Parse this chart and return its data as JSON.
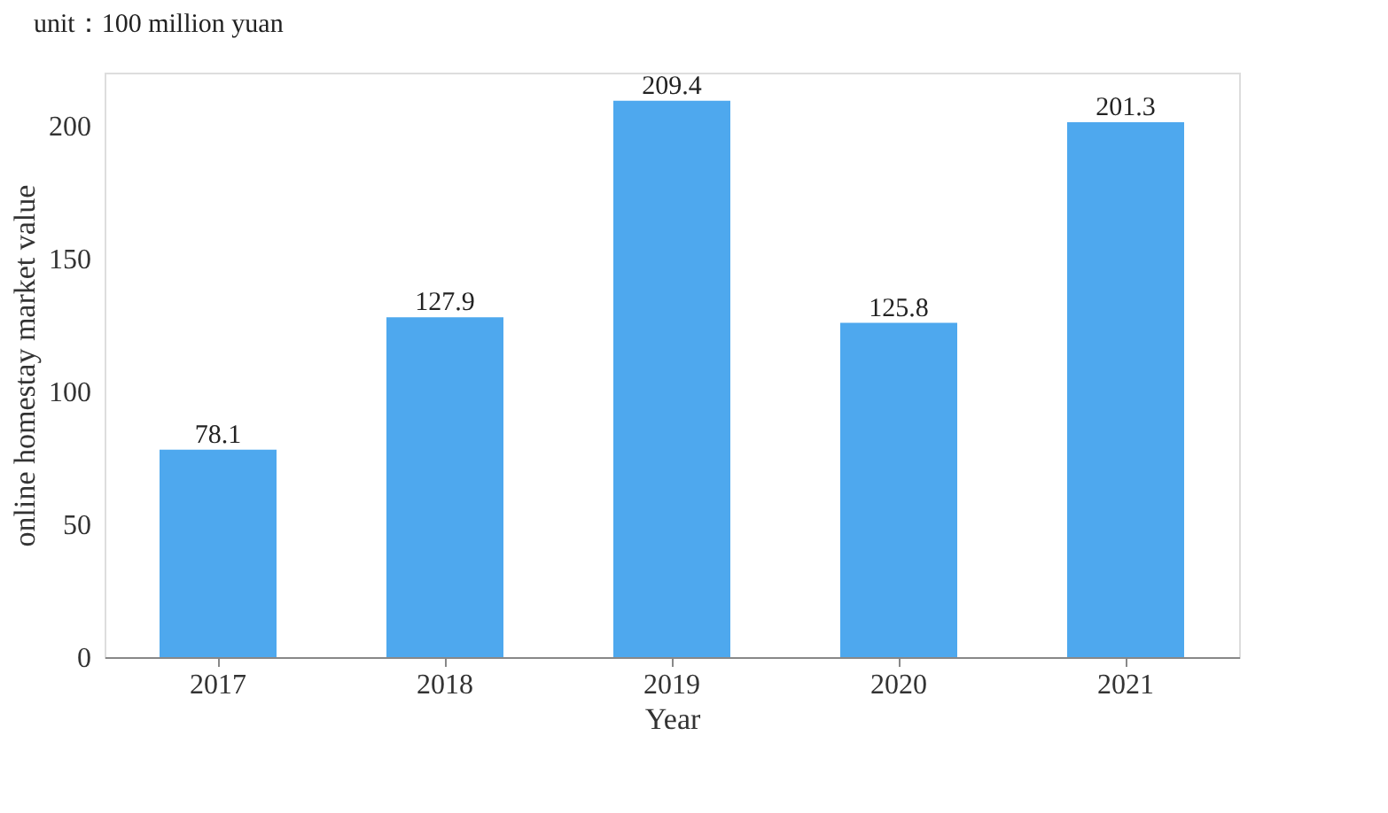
{
  "chart_data": {
    "type": "bar",
    "title": "unit：100 million yuan",
    "xlabel": "Year",
    "ylabel": "online homestay market value",
    "categories": [
      "2017",
      "2018",
      "2019",
      "2020",
      "2021"
    ],
    "values": [
      78.1,
      127.9,
      209.4,
      125.8,
      201.3
    ],
    "color": "#4ea8ee",
    "ylim": [
      0,
      220
    ],
    "yticks": [
      0,
      50,
      100,
      150,
      200
    ],
    "grid": false,
    "data_labels": true
  }
}
